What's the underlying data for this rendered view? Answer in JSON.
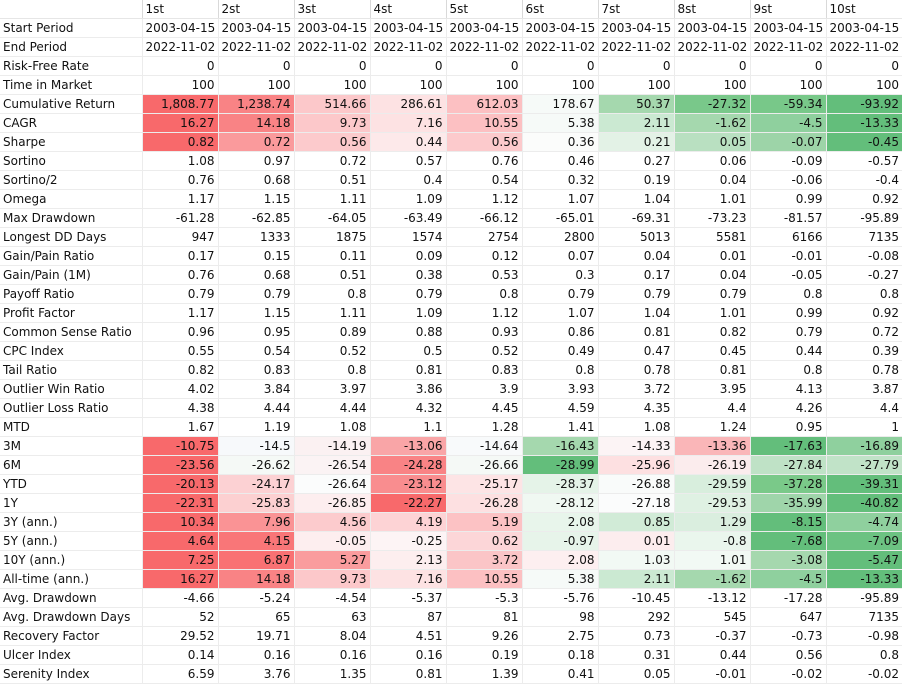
{
  "columns": [
    "1st",
    "2st",
    "3st",
    "4st",
    "5st",
    "6st",
    "7st",
    "8st",
    "9st",
    "10st"
  ],
  "rows": [
    {
      "label": "Start Period",
      "values": [
        "2003-04-15",
        "2003-04-15",
        "2003-04-15",
        "2003-04-15",
        "2003-04-15",
        "2003-04-15",
        "2003-04-15",
        "2003-04-15",
        "2003-04-15",
        "2003-04-15"
      ]
    },
    {
      "label": "End Period",
      "values": [
        "2022-11-02",
        "2022-11-02",
        "2022-11-02",
        "2022-11-02",
        "2022-11-02",
        "2022-11-02",
        "2022-11-02",
        "2022-11-02",
        "2022-11-02",
        "2022-11-02"
      ]
    },
    {
      "label": "Risk-Free Rate",
      "values": [
        "0",
        "0",
        "0",
        "0",
        "0",
        "0",
        "0",
        "0",
        "0",
        "0"
      ]
    },
    {
      "label": "Time in Market",
      "values": [
        "100",
        "100",
        "100",
        "100",
        "100",
        "100",
        "100",
        "100",
        "100",
        "100"
      ]
    },
    {
      "label": "Cumulative Return",
      "values": [
        "1,808.77",
        "1,238.74",
        "514.66",
        "286.61",
        "612.03",
        "178.67",
        "50.37",
        "-27.32",
        "-59.34",
        "-93.92"
      ],
      "colors": [
        "#f8696b",
        "#f98385",
        "#fcc8ca",
        "#fde2e3",
        "#fcc0c2",
        "#f6faf8",
        "#a5d8ae",
        "#79c88a",
        "#78c889",
        "#63be7b"
      ]
    },
    {
      "label": "CAGR",
      "values": [
        "16.27",
        "14.18",
        "9.73",
        "7.16",
        "10.55",
        "5.38",
        "2.11",
        "-1.62",
        "-4.5",
        "-13.33"
      ],
      "colors": [
        "#f8696b",
        "#f98385",
        "#fcc8ca",
        "#fde2e3",
        "#fcc0c2",
        "#f6faf8",
        "#cbe9d2",
        "#a5d8ae",
        "#8fd09e",
        "#63be7b"
      ]
    },
    {
      "label": "Sharpe",
      "values": [
        "0.82",
        "0.72",
        "0.56",
        "0.44",
        "0.56",
        "0.36",
        "0.21",
        "0.05",
        "-0.07",
        "-0.45"
      ],
      "colors": [
        "#f8696b",
        "#fa9a9c",
        "#fccacc",
        "#fde9ea",
        "#fccacc",
        "#fbfcfb",
        "#e3f2e6",
        "#b9e0c1",
        "#9dd4a8",
        "#63be7b"
      ]
    },
    {
      "label": "Sortino",
      "values": [
        "1.08",
        "0.97",
        "0.72",
        "0.57",
        "0.76",
        "0.46",
        "0.27",
        "0.06",
        "-0.09",
        "-0.57"
      ]
    },
    {
      "label": "Sortino/2",
      "values": [
        "0.76",
        "0.68",
        "0.51",
        "0.4",
        "0.54",
        "0.32",
        "0.19",
        "0.04",
        "-0.06",
        "-0.4"
      ]
    },
    {
      "label": "Omega",
      "values": [
        "1.17",
        "1.15",
        "1.11",
        "1.09",
        "1.12",
        "1.07",
        "1.04",
        "1.01",
        "0.99",
        "0.92"
      ]
    },
    {
      "label": "Max Drawdown",
      "values": [
        "-61.28",
        "-62.85",
        "-64.05",
        "-63.49",
        "-66.12",
        "-65.01",
        "-69.31",
        "-73.23",
        "-81.57",
        "-95.89"
      ]
    },
    {
      "label": "Longest DD Days",
      "values": [
        "947",
        "1333",
        "1875",
        "1574",
        "2754",
        "2800",
        "5013",
        "5581",
        "6166",
        "7135"
      ]
    },
    {
      "label": "Gain/Pain Ratio",
      "values": [
        "0.17",
        "0.15",
        "0.11",
        "0.09",
        "0.12",
        "0.07",
        "0.04",
        "0.01",
        "-0.01",
        "-0.08"
      ]
    },
    {
      "label": "Gain/Pain (1M)",
      "values": [
        "0.76",
        "0.68",
        "0.51",
        "0.38",
        "0.53",
        "0.3",
        "0.17",
        "0.04",
        "-0.05",
        "-0.27"
      ]
    },
    {
      "label": "Payoff Ratio",
      "values": [
        "0.79",
        "0.79",
        "0.8",
        "0.79",
        "0.8",
        "0.79",
        "0.79",
        "0.79",
        "0.8",
        "0.8"
      ]
    },
    {
      "label": "Profit Factor",
      "values": [
        "1.17",
        "1.15",
        "1.11",
        "1.09",
        "1.12",
        "1.07",
        "1.04",
        "1.01",
        "0.99",
        "0.92"
      ]
    },
    {
      "label": "Common Sense Ratio",
      "values": [
        "0.96",
        "0.95",
        "0.89",
        "0.88",
        "0.93",
        "0.86",
        "0.81",
        "0.82",
        "0.79",
        "0.72"
      ]
    },
    {
      "label": "CPC Index",
      "values": [
        "0.55",
        "0.54",
        "0.52",
        "0.5",
        "0.52",
        "0.49",
        "0.47",
        "0.45",
        "0.44",
        "0.39"
      ]
    },
    {
      "label": "Tail Ratio",
      "values": [
        "0.82",
        "0.83",
        "0.8",
        "0.81",
        "0.83",
        "0.8",
        "0.78",
        "0.81",
        "0.8",
        "0.78"
      ]
    },
    {
      "label": "Outlier Win Ratio",
      "values": [
        "4.02",
        "3.84",
        "3.97",
        "3.86",
        "3.9",
        "3.93",
        "3.72",
        "3.95",
        "4.13",
        "3.87"
      ]
    },
    {
      "label": "Outlier Loss Ratio",
      "values": [
        "4.38",
        "4.44",
        "4.44",
        "4.32",
        "4.45",
        "4.59",
        "4.35",
        "4.4",
        "4.26",
        "4.4"
      ]
    },
    {
      "label": "MTD",
      "values": [
        "1.67",
        "1.19",
        "1.08",
        "1.1",
        "1.28",
        "1.41",
        "1.08",
        "1.24",
        "0.95",
        "1"
      ]
    },
    {
      "label": "3M",
      "values": [
        "-10.75",
        "-14.5",
        "-14.19",
        "-13.06",
        "-14.64",
        "-16.43",
        "-14.33",
        "-13.36",
        "-17.63",
        "-16.89"
      ],
      "colors": [
        "#f8696b",
        "#f7f9fb",
        "#fbf1f2",
        "#f9a5a7",
        "#f8fafb",
        "#a5d8ae",
        "#fcf4f5",
        "#fab6b8",
        "#63be7b",
        "#8fd09e"
      ]
    },
    {
      "label": "6M",
      "values": [
        "-23.56",
        "-26.62",
        "-26.54",
        "-24.28",
        "-26.66",
        "-28.99",
        "-25.96",
        "-26.19",
        "-27.84",
        "-27.79"
      ],
      "colors": [
        "#f8696b",
        "#f5f9f6",
        "#fbf3f4",
        "#f98385",
        "#f5f9f6",
        "#63be7b",
        "#fde0e1",
        "#fbeced",
        "#bfe2c6",
        "#c1e3c8"
      ]
    },
    {
      "label": "YTD",
      "values": [
        "-20.13",
        "-24.17",
        "-26.64",
        "-23.12",
        "-25.17",
        "-28.37",
        "-26.88",
        "-29.59",
        "-37.28",
        "-39.31"
      ],
      "colors": [
        "#f8696b",
        "#fcd1d3",
        "#fbfcfc",
        "#f98d8f",
        "#fde4e5",
        "#e5f3e8",
        "#f9fbfa",
        "#d8eedd",
        "#7ac989",
        "#63be7b"
      ]
    },
    {
      "label": "1Y",
      "values": [
        "-22.31",
        "-25.83",
        "-26.85",
        "-22.27",
        "-26.28",
        "-28.12",
        "-27.18",
        "-29.53",
        "-35.99",
        "-40.82"
      ],
      "colors": [
        "#f8696b",
        "#fcd0d1",
        "#fdeeef",
        "#f8696b",
        "#fde0e1",
        "#f0f8f2",
        "#fbfcfc",
        "#dff1e3",
        "#9fd5aa",
        "#63be7b"
      ]
    },
    {
      "label": "3Y (ann.)",
      "values": [
        "10.34",
        "7.96",
        "4.56",
        "4.19",
        "5.19",
        "2.08",
        "0.85",
        "1.29",
        "-8.15",
        "-4.74"
      ],
      "colors": [
        "#f8696b",
        "#fa9395",
        "#fccbcd",
        "#fdd3d5",
        "#fcc2c4",
        "#e8f5eb",
        "#d1ebd7",
        "#daeedf",
        "#63be7b",
        "#8fd09e"
      ]
    },
    {
      "label": "5Y (ann.)",
      "values": [
        "4.64",
        "4.15",
        "-0.05",
        "-0.25",
        "0.62",
        "-0.97",
        "0.01",
        "-0.8",
        "-7.68",
        "-7.09"
      ],
      "colors": [
        "#f8696b",
        "#f97678",
        "#fdeeef",
        "#fdf4f5",
        "#fcd6d8",
        "#e7f4ea",
        "#fcedee",
        "#eaf6ed",
        "#63be7b",
        "#6cc282"
      ]
    },
    {
      "label": "10Y (ann.)",
      "values": [
        "7.25",
        "6.87",
        "5.27",
        "2.13",
        "3.72",
        "2.08",
        "1.03",
        "1.01",
        "-3.08",
        "-5.47"
      ],
      "colors": [
        "#f8696b",
        "#f97173",
        "#fa9c9e",
        "#fdeeef",
        "#fbc5c7",
        "#fdeff0",
        "#f2f9f4",
        "#f2f9f4",
        "#a5d8ae",
        "#63be7b"
      ]
    },
    {
      "label": "All-time (ann.)",
      "values": [
        "16.27",
        "14.18",
        "9.73",
        "7.16",
        "10.55",
        "5.38",
        "2.11",
        "-1.62",
        "-4.5",
        "-13.33"
      ],
      "colors": [
        "#f8696b",
        "#f98385",
        "#fcc8ca",
        "#fde2e3",
        "#fcc0c2",
        "#f6faf8",
        "#cbe9d2",
        "#a5d8ae",
        "#8fd09e",
        "#63be7b"
      ]
    },
    {
      "label": "Avg. Drawdown",
      "values": [
        "-4.66",
        "-5.24",
        "-4.54",
        "-5.37",
        "-5.3",
        "-5.76",
        "-10.45",
        "-13.12",
        "-17.28",
        "-95.89"
      ]
    },
    {
      "label": "Avg. Drawdown Days",
      "values": [
        "52",
        "65",
        "63",
        "87",
        "81",
        "98",
        "292",
        "545",
        "647",
        "7135"
      ]
    },
    {
      "label": "Recovery Factor",
      "values": [
        "29.52",
        "19.71",
        "8.04",
        "4.51",
        "9.26",
        "2.75",
        "0.73",
        "-0.37",
        "-0.73",
        "-0.98"
      ]
    },
    {
      "label": "Ulcer Index",
      "values": [
        "0.14",
        "0.16",
        "0.16",
        "0.16",
        "0.19",
        "0.18",
        "0.31",
        "0.44",
        "0.56",
        "0.8"
      ]
    },
    {
      "label": "Serenity Index",
      "values": [
        "6.59",
        "3.76",
        "1.35",
        "0.81",
        "1.39",
        "0.41",
        "0.05",
        "-0.01",
        "-0.02",
        "-0.02"
      ]
    }
  ]
}
